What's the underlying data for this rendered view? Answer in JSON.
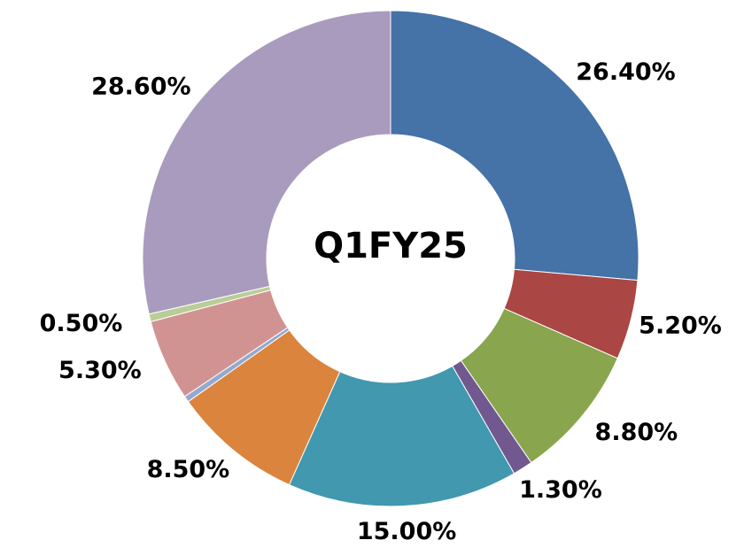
{
  "chart_data": {
    "type": "donut",
    "title": "Q1FY25",
    "values": [
      26.4,
      5.2,
      8.8,
      1.3,
      15.0,
      8.5,
      0.4,
      5.3,
      0.5,
      28.6
    ],
    "value_labels": [
      "26.40%",
      "5.20%",
      "8.80%",
      "1.30%",
      "15.00%",
      "8.50%",
      null,
      "5.30%",
      "0.50%",
      "28.60%"
    ],
    "colors": [
      "#4572a7",
      "#aa4643",
      "#89a54e",
      "#71588f",
      "#4198af",
      "#db843d",
      "#93a9cf",
      "#d19392",
      "#b9cd96",
      "#a99bbd"
    ]
  }
}
